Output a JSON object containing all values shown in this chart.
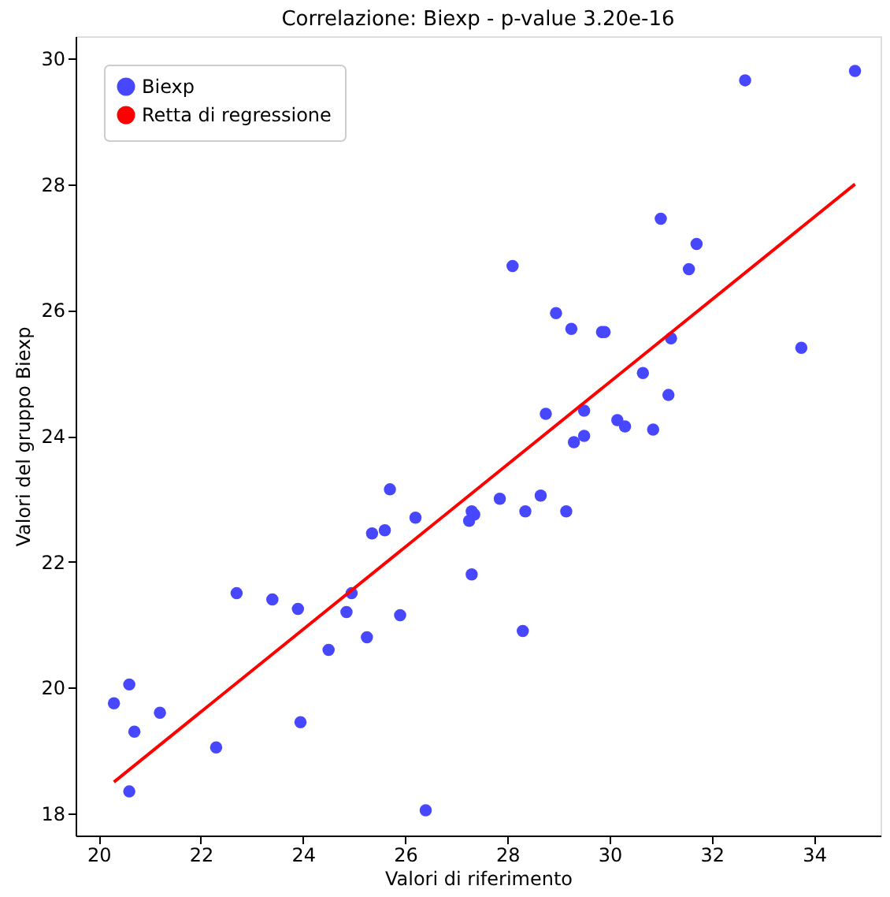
{
  "chart_data": {
    "type": "scatter",
    "title": "Correlazione: Biexp - p-value 3.20e-16",
    "xlabel": "Valori di riferimento",
    "ylabel": "Valori del gruppo Biexp",
    "xlim": [
      19.55,
      35.3
    ],
    "ylim": [
      17.65,
      30.35
    ],
    "xticks": [
      20,
      22,
      24,
      26,
      28,
      30,
      32,
      34
    ],
    "yticks": [
      18,
      20,
      22,
      24,
      26,
      28,
      30
    ],
    "grid": false,
    "legend": "top left",
    "series": [
      {
        "name": "Biexp",
        "marker": "circle",
        "color": "#4747ff",
        "x": [
          20.3,
          20.6,
          20.7,
          20.6,
          21.2,
          22.3,
          22.7,
          23.4,
          23.9,
          23.95,
          24.5,
          24.85,
          24.95,
          25.25,
          25.35,
          25.6,
          25.7,
          25.9,
          26.2,
          26.4,
          27.25,
          27.3,
          27.3,
          27.35,
          27.85,
          28.1,
          28.3,
          28.35,
          28.65,
          28.75,
          28.95,
          29.15,
          29.25,
          29.3,
          29.5,
          29.5,
          29.85,
          29.9,
          30.15,
          30.3,
          30.65,
          30.85,
          31.0,
          31.15,
          31.2,
          31.55,
          31.7,
          32.65,
          33.75,
          34.8
        ],
        "values": [
          19.75,
          20.05,
          19.3,
          18.35,
          19.6,
          19.05,
          21.5,
          21.4,
          21.25,
          19.45,
          20.6,
          21.2,
          21.5,
          20.8,
          22.45,
          22.5,
          23.15,
          21.15,
          22.7,
          18.05,
          22.65,
          22.8,
          21.8,
          22.75,
          23.0,
          26.7,
          20.9,
          22.8,
          23.05,
          24.35,
          25.95,
          22.8,
          25.7,
          23.9,
          24.0,
          24.4,
          25.65,
          25.65,
          24.25,
          24.15,
          25.0,
          24.1,
          27.45,
          24.65,
          25.55,
          26.65,
          27.05,
          29.65,
          25.4,
          29.8
        ]
      },
      {
        "name": "Retta di regressione",
        "type": "line",
        "line_style": "solid",
        "color": "#ff0000",
        "x": [
          20.3,
          34.8
        ],
        "values": [
          18.5,
          28.0
        ]
      }
    ]
  }
}
